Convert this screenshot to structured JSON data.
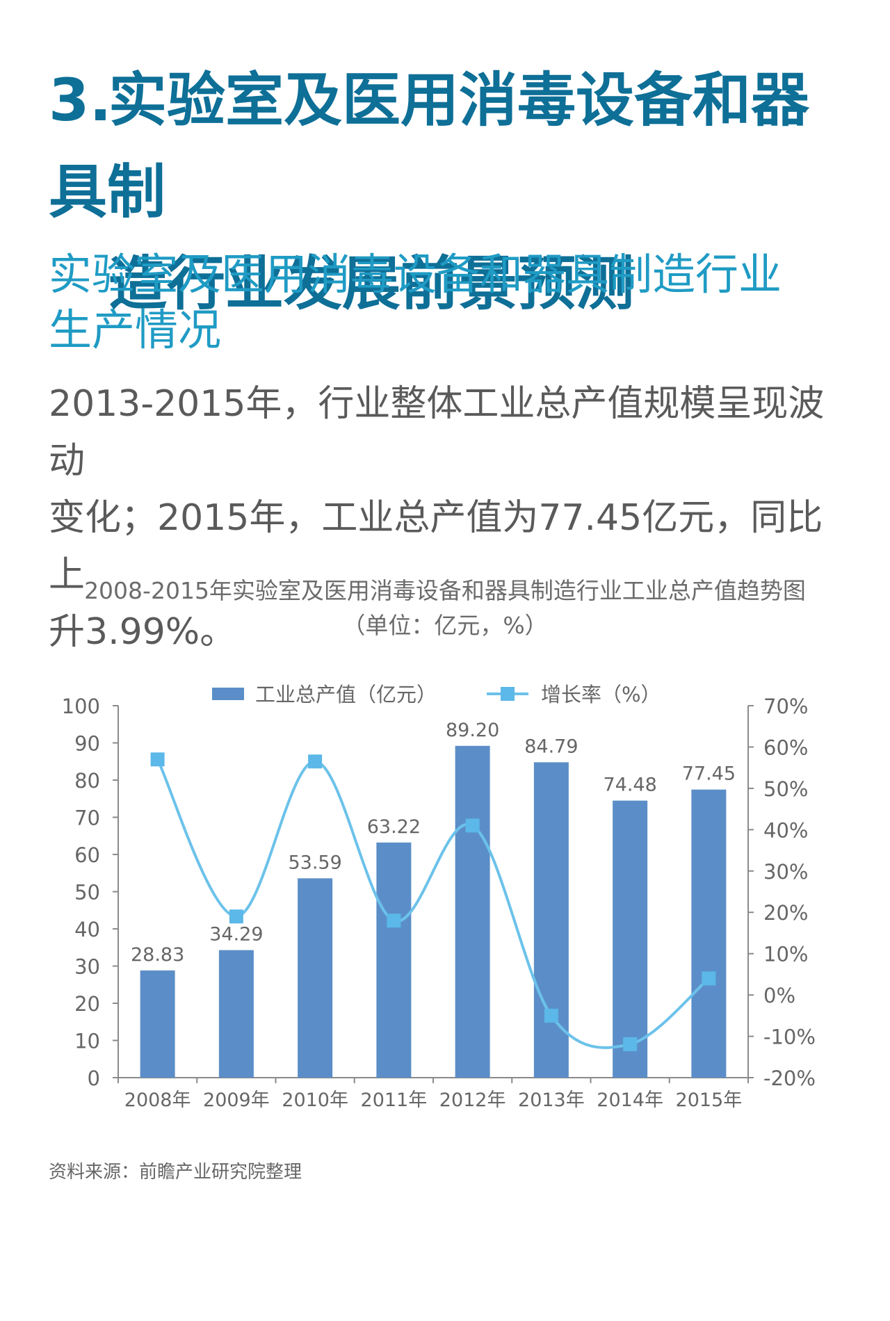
{
  "heading": {
    "number": "3.",
    "line1": "实验室及医用消毒设备和器具制",
    "line2": "造行业发展前景预测"
  },
  "subheading": {
    "line1": "实验室及医用消毒设备和器具制造行业",
    "line2": "生产情况"
  },
  "body": {
    "line1": "2013-2015年，行业整体工业总产值规模呈现波动",
    "line2": "变化；2015年，工业总产值为77.45亿元，同比上",
    "line3": "升3.99%。"
  },
  "source": "资料来源：前瞻产业研究院整理",
  "colors": {
    "heading": "#0e6f97",
    "subheading": "#1f9bc4",
    "bar": "#5b8ec8",
    "line": "#6cc2ea",
    "marker": "#5bb8e8",
    "axis": "#8a8a8a",
    "text": "#666666"
  },
  "chart_data": {
    "type": "bar",
    "title": "2008-2015年实验室及医用消毒设备和器具制造行业工业总产值趋势图",
    "subtitle": "（单位：亿元，%）",
    "categories": [
      "2008年",
      "2009年",
      "2010年",
      "2011年",
      "2012年",
      "2013年",
      "2014年",
      "2015年"
    ],
    "series": [
      {
        "name": "工业总产值（亿元）",
        "type": "bar",
        "axis": "left",
        "values": [
          28.83,
          34.29,
          53.59,
          63.22,
          89.2,
          84.79,
          74.48,
          77.45
        ],
        "labels": [
          "28.83",
          "34.29",
          "53.59",
          "63.22",
          "89.20",
          "84.79",
          "74.48",
          "77.45"
        ]
      },
      {
        "name": "增长率（%）",
        "type": "line",
        "axis": "right",
        "values": [
          57,
          19,
          56.5,
          18,
          41,
          -5,
          -11.9,
          4
        ]
      }
    ],
    "y_left": {
      "lim": [
        0,
        100
      ],
      "ticks": [
        0,
        10,
        20,
        30,
        40,
        50,
        60,
        70,
        80,
        90,
        100
      ],
      "tick_labels": [
        "0",
        "10",
        "20",
        "30",
        "40",
        "50",
        "60",
        "70",
        "80",
        "90",
        "100"
      ]
    },
    "y_right": {
      "lim": [
        -20,
        70
      ],
      "ticks": [
        -20,
        -10,
        0,
        10,
        20,
        30,
        40,
        50,
        60,
        70
      ],
      "tick_labels": [
        "-20%",
        "-10%",
        "0%",
        "10%",
        "20%",
        "30%",
        "40%",
        "50%",
        "60%",
        "70%"
      ]
    },
    "legend_position": "top-center",
    "grid": false
  }
}
